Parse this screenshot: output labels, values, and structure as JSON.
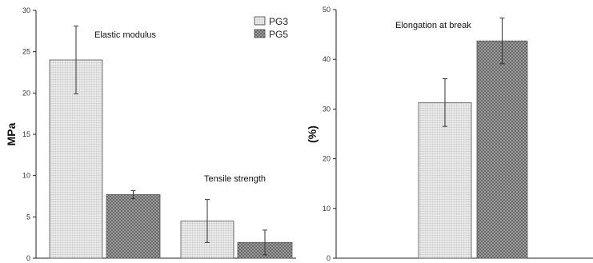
{
  "chart_data": [
    {
      "type": "bar",
      "ylabel": "MPa",
      "ylim": [
        0,
        30
      ],
      "yticks": [
        "0",
        "5",
        "10",
        "15",
        "20",
        "25",
        "30"
      ],
      "groups": [
        "Elastic modulus",
        "Tensile strength"
      ],
      "legend": {
        "placement": "top-right",
        "entries": [
          "PG3",
          "PG5"
        ]
      },
      "series": [
        {
          "name": "PG3",
          "values": [
            24.0,
            4.5
          ],
          "errors": [
            4.1,
            2.6
          ],
          "pattern": "light-grid",
          "color": "#dcdcdc"
        },
        {
          "name": "PG5",
          "values": [
            7.7,
            1.9
          ],
          "errors": [
            0.5,
            1.5
          ],
          "pattern": "dark-crosshatch",
          "color": "#8a8a8a"
        }
      ]
    },
    {
      "type": "bar",
      "ylabel": "(%)",
      "ylim": [
        0,
        50
      ],
      "yticks": [
        "0",
        "10",
        "20",
        "30",
        "40",
        "50"
      ],
      "groups": [
        "Elongation at break"
      ],
      "series": [
        {
          "name": "PG3",
          "values": [
            31.3
          ],
          "errors": [
            4.8
          ],
          "pattern": "light-grid",
          "color": "#dcdcdc"
        },
        {
          "name": "PG5",
          "values": [
            43.7
          ],
          "errors": [
            4.6
          ],
          "pattern": "dark-crosshatch",
          "color": "#8a8a8a"
        }
      ]
    }
  ]
}
